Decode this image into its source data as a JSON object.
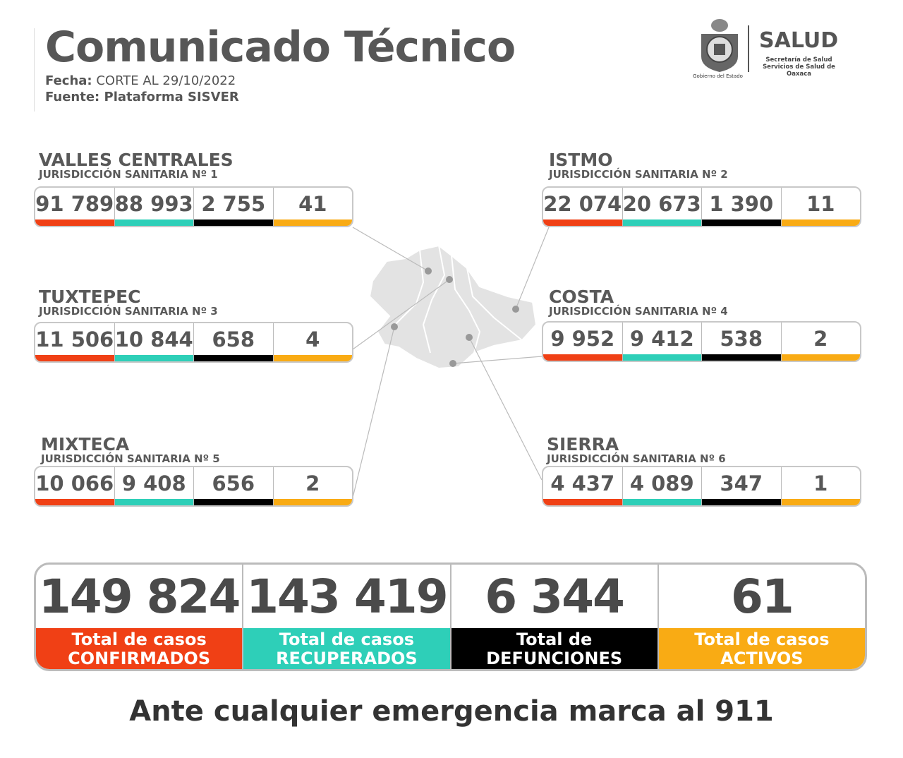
{
  "header": {
    "title": "Comunicado Técnico",
    "fecha_label": "Fecha:",
    "fecha_value": "CORTE AL 29/10/2022",
    "fuente": "Fuente: Plataforma SISVER"
  },
  "logo": {
    "brand": "SALUD",
    "line1": "Secretaría de Salud",
    "line2": "Servicios de Salud de Oaxaca",
    "gobierno": "Gobierno del Estado"
  },
  "colors": {
    "confirmados": "#f04015",
    "recuperados": "#2ecfb8",
    "defunciones": "#000000",
    "activos": "#f9ab14"
  },
  "regions": [
    {
      "name": "VALLES CENTRALES",
      "sub": "JURISDICCIÓN SANITARIA Nº 1",
      "values": [
        "91 789",
        "88 993",
        "2 755",
        "41"
      ]
    },
    {
      "name": "ISTMO",
      "sub": "JURISDICCIÓN SANITARIA Nº 2",
      "values": [
        "22 074",
        "20 673",
        "1 390",
        "11"
      ]
    },
    {
      "name": "TUXTEPEC",
      "sub": "JURISDICCIÓN SANITARIA Nº 3",
      "values": [
        "11 506",
        "10 844",
        "658",
        "4"
      ]
    },
    {
      "name": "COSTA",
      "sub": "JURISDICCIÓN SANITARIA Nº 4",
      "values": [
        "9 952",
        "9 412",
        "538",
        "2"
      ]
    },
    {
      "name": "MIXTECA",
      "sub": "JURISDICCIÓN SANITARIA Nº 5",
      "values": [
        "10 066",
        "9 408",
        "656",
        "2"
      ]
    },
    {
      "name": "SIERRA",
      "sub": "JURISDICCIÓN SANITARIA Nº 6",
      "values": [
        "4 437",
        "4 089",
        "347",
        "1"
      ]
    }
  ],
  "totals": [
    {
      "value": "149 824",
      "line1": "Total de casos",
      "line2": "CONFIRMADOS"
    },
    {
      "value": "143 419",
      "line1": "Total de casos",
      "line2": "RECUPERADOS"
    },
    {
      "value": "6 344",
      "line1": "Total de",
      "line2": "DEFUNCIONES"
    },
    {
      "value": "61",
      "line1": "Total de casos",
      "line2": "ACTIVOS"
    }
  ],
  "footer": "Ante cualquier emergencia marca al 911"
}
